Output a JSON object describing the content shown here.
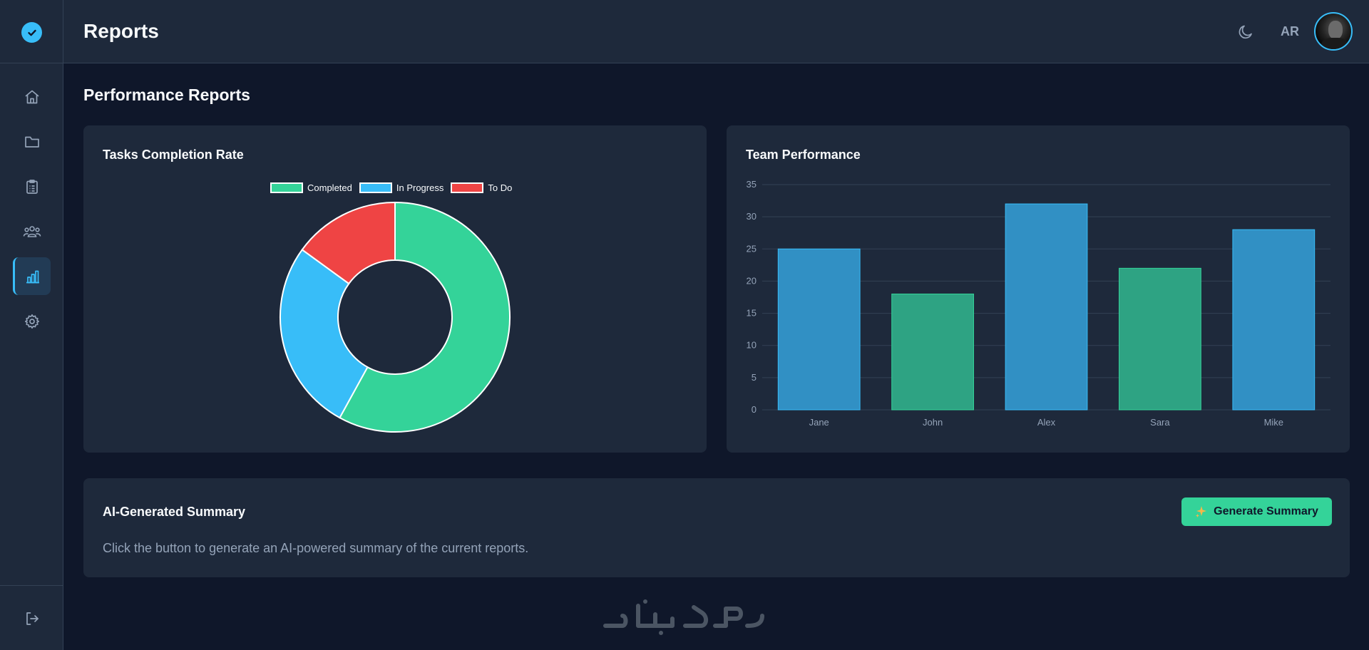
{
  "header": {
    "title": "Reports",
    "user_initials": "AR"
  },
  "sidebar": {
    "items": [
      {
        "icon": "home-icon"
      },
      {
        "icon": "folder-icon"
      },
      {
        "icon": "clipboard-icon"
      },
      {
        "icon": "team-icon"
      },
      {
        "icon": "bar-chart-icon",
        "active": true
      },
      {
        "icon": "gear-icon"
      }
    ],
    "logout_icon": "logout-icon"
  },
  "main": {
    "section_title": "Performance Reports"
  },
  "colors": {
    "completed": "#34d399",
    "in_progress": "#38bdf8",
    "todo": "#ef4444",
    "bar_blue": "#3190c4",
    "bar_green": "#2ea383"
  },
  "tasks_card": {
    "title": "Tasks Completion Rate"
  },
  "team_card": {
    "title": "Team Performance"
  },
  "summary": {
    "title": "AI-Generated Summary",
    "description": "Click the button to generate an AI-powered summary of the current reports.",
    "button_label": "Generate Summary",
    "button_icon": "sparkles-icon"
  },
  "chart_data": [
    {
      "type": "pie",
      "title": "Tasks Completion Rate",
      "legend_position": "top",
      "categories": [
        "Completed",
        "In Progress",
        "To Do"
      ],
      "values": [
        58,
        27,
        15
      ]
    },
    {
      "type": "bar",
      "title": "Team Performance",
      "categories": [
        "Jane",
        "John",
        "Alex",
        "Sara",
        "Mike"
      ],
      "values": [
        25,
        18,
        32,
        22,
        28
      ],
      "ylim": [
        0,
        35
      ],
      "yticks": [
        0,
        5,
        10,
        15,
        20,
        25,
        30,
        35
      ],
      "grid": true
    }
  ]
}
